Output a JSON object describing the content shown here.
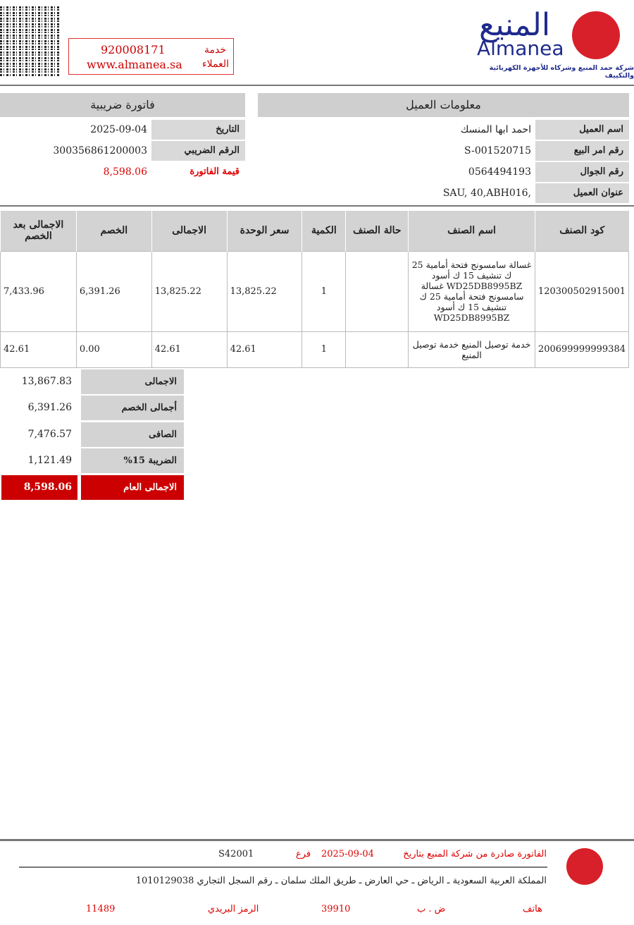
{
  "header": {
    "service_phone": "920008171",
    "service_url": "www.almanea.sa",
    "service_label_1": "خدمة",
    "service_label_2": "العملاء",
    "logo_ar": "المنيع",
    "logo_en": "Almanea",
    "logo_sub": "شركة حمد المنيع وشركاه للأجهزة الكهربائية والتكييف"
  },
  "customer": {
    "title": "معلومات العميل",
    "rows": [
      {
        "label": "اسم العميل",
        "value": "احمد ابها المنسك"
      },
      {
        "label": "رقم امر البيع",
        "value": "S-001520715"
      },
      {
        "label": "رقم الجوال",
        "value": "0564494193"
      },
      {
        "label": "عنوان العميل",
        "value": "SAU, 40,ABH016,"
      }
    ]
  },
  "invoice": {
    "title": "فاتورة ضريبية",
    "rows": [
      {
        "label": "التاريخ",
        "value": "2025-09-04"
      },
      {
        "label": "الرقم الضريبي",
        "value": "300356861200003"
      },
      {
        "label": "قيمة الفاتورة",
        "value": "8,598.06"
      }
    ]
  },
  "items": {
    "headers": [
      "كود الصنف",
      "اسم الصنف",
      "حالة الصنف",
      "الكمية",
      "سعر الوحدة",
      "الاجمالى",
      "الخصم",
      "الاجمالى بعد الخصم"
    ],
    "rows": [
      [
        "120300502915001",
        "غسالة سامسونج فتحة أمامية 25 ك تنشيف 15 ك أسود WD25DB8995BZ غسالة سامسونج فتحة أمامية 25 ك تنشيف 15 ك أسود WD25DB8995BZ",
        "",
        "1",
        "13,825.22",
        "13,825.22",
        "6,391.26",
        "7,433.96"
      ],
      [
        "200699999999384",
        "خدمة توصيل المنيع خدمة توصيل المنيع",
        "",
        "1",
        "42.61",
        "42.61",
        "0.00",
        "42.61"
      ]
    ]
  },
  "totals": [
    {
      "label": "الاجمالى",
      "value": "13,867.83"
    },
    {
      "label": "أجمالى الخصم",
      "value": "6,391.26"
    },
    {
      "label": "الصافى",
      "value": "7,476.57"
    },
    {
      "label": "الضريبة 15%",
      "value": "1,121.49"
    },
    {
      "label": "الاجمالى العام",
      "value": "8,598.06"
    }
  ],
  "footer": {
    "issued": "الفاتورة صادرة من شركة المنيع بتاريخ",
    "date": "2025-09-04",
    "branch_label": "فرع",
    "branch": "S42001",
    "address": "المملكة العربية السعودية ـ الرياض ـ حي العارض ـ طريق الملك سلمان ـ رقم السجل التجاري 1010129038",
    "phone_label": "هاتف",
    "pobox_label": "ض . ب",
    "pobox": "39910",
    "postal_label": "الرمز البريدي",
    "postal": "11489"
  },
  "colors": {
    "accent": "#cc0000",
    "brand": "#1e2a8c"
  }
}
